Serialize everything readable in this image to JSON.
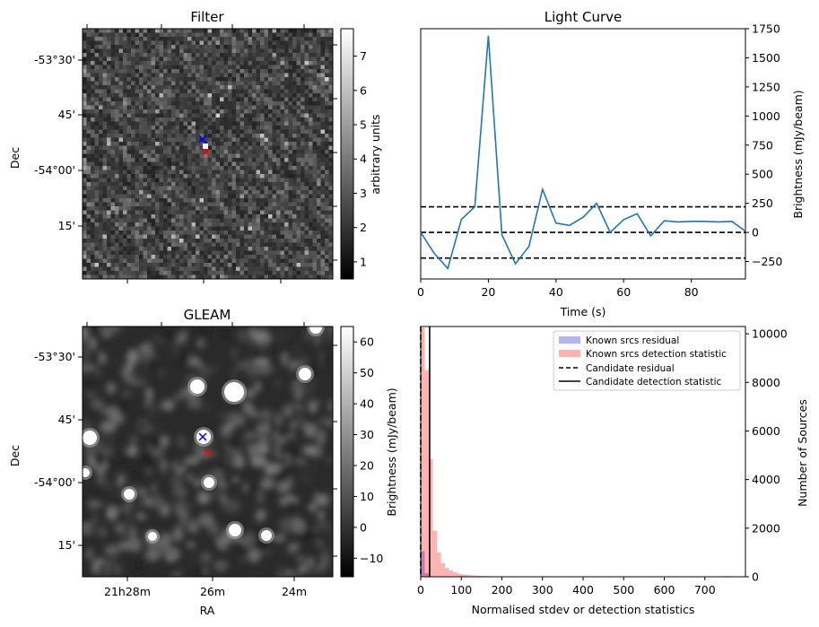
{
  "chart_data": [
    {
      "type": "heatmap",
      "title": "Filter",
      "xlabel": "",
      "ylabel": "Dec",
      "y_ticks": [
        "-53°30'",
        "45'",
        "-54°00'",
        "15'"
      ],
      "colorbar": {
        "label": "arbitrary units",
        "ticks": [
          "1",
          "2",
          "3",
          "4",
          "5",
          "6",
          "7"
        ],
        "range": [
          0.5,
          7.8
        ]
      },
      "cmap": "gray",
      "markers": [
        {
          "name": "blue-cross",
          "color": "#0000ff",
          "symbol": "x"
        },
        {
          "name": "red-cross",
          "color": "#ff0000",
          "symbol": "x"
        }
      ]
    },
    {
      "type": "line",
      "title": "Light Curve",
      "xlabel": "Time (s)",
      "ylabel": "Brightness (mJy/beam)",
      "xlim": [
        0,
        96
      ],
      "ylim": [
        -400,
        1750
      ],
      "x_ticks": [
        0,
        20,
        40,
        60,
        80
      ],
      "y_ticks": [
        -250,
        0,
        250,
        500,
        750,
        1000,
        1250,
        1500,
        1750
      ],
      "series": [
        {
          "color": "#1f77b4",
          "x": [
            0,
            4,
            8,
            12,
            16,
            20,
            24,
            28,
            32,
            36,
            40,
            44,
            48,
            52,
            56,
            60,
            64,
            68,
            72,
            76,
            80,
            84,
            88,
            92,
            96
          ],
          "y": [
            0,
            -180,
            -310,
            110,
            220,
            1690,
            -20,
            -270,
            -120,
            370,
            80,
            60,
            130,
            250,
            0,
            110,
            160,
            -30,
            100,
            90,
            95,
            95,
            90,
            95,
            10
          ]
        }
      ],
      "hlines": [
        {
          "y": 220,
          "style": "dashed",
          "color": "#000000"
        },
        {
          "y": 0,
          "style": "dashed",
          "color": "#000000"
        },
        {
          "y": -220,
          "style": "dashed",
          "color": "#000000"
        }
      ]
    },
    {
      "type": "heatmap",
      "title": "GLEAM",
      "xlabel": "RA",
      "ylabel": "Dec",
      "x_ticks": [
        "21h28m",
        "26m",
        "24m"
      ],
      "y_ticks": [
        "-53°30'",
        "45'",
        "-54°00'",
        "15'"
      ],
      "colorbar": {
        "label": "Brightness (mJy/beam)",
        "ticks": [
          "−10",
          "0",
          "10",
          "20",
          "30",
          "40",
          "50",
          "60"
        ],
        "range": [
          -16,
          65
        ]
      },
      "cmap": "gray",
      "markers": [
        {
          "name": "blue-cross",
          "color": "#0000ff",
          "symbol": "x"
        },
        {
          "name": "red-cross",
          "color": "#ff0000",
          "symbol": "x"
        }
      ]
    },
    {
      "type": "bar",
      "title": "",
      "xlabel": "Normalised stdev or detection statistics",
      "ylabel": "Number of Sources",
      "xlim": [
        0,
        800
      ],
      "ylim": [
        0,
        10300
      ],
      "x_ticks": [
        0,
        100,
        200,
        300,
        400,
        500,
        600,
        700
      ],
      "y_ticks": [
        0,
        2000,
        4000,
        6000,
        8000,
        10000
      ],
      "bin_width": 10,
      "series": [
        {
          "name": "Known srcs residual",
          "color": "#0000ff",
          "alpha": 0.3,
          "bins_start": [
            0,
            10
          ],
          "values": [
            1050,
            150
          ]
        },
        {
          "name": "Known srcs detection statistic",
          "color": "#ff0000",
          "alpha": 0.3,
          "bins_start": [
            0,
            10,
            20,
            30,
            40,
            50,
            60,
            70,
            80,
            90,
            100,
            110,
            120,
            130,
            140,
            150,
            160,
            170,
            180,
            190,
            200,
            300,
            400,
            500,
            600,
            700,
            750
          ],
          "values": [
            10250,
            8500,
            4850,
            1900,
            1000,
            560,
            360,
            260,
            180,
            130,
            100,
            80,
            60,
            50,
            40,
            30,
            25,
            20,
            18,
            15,
            10,
            8,
            8,
            6,
            5,
            4,
            30
          ]
        }
      ],
      "vlines": [
        {
          "name": "Candidate residual",
          "x": 0,
          "style": "dashed",
          "color": "#000000"
        },
        {
          "name": "Candidate detection statistic",
          "x": 22,
          "style": "solid",
          "color": "#000000"
        }
      ],
      "legend": "top-right"
    }
  ]
}
